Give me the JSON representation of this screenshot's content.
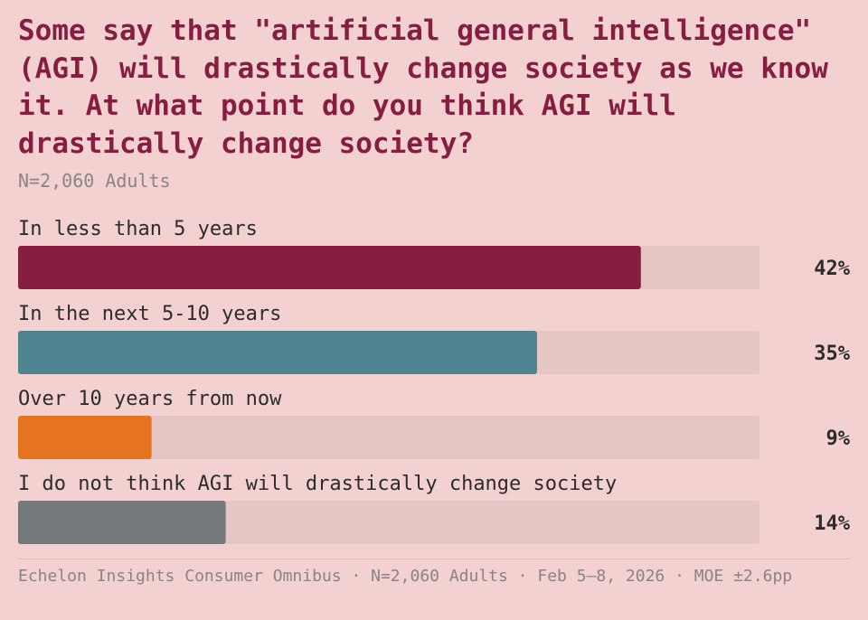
{
  "header": {
    "title": "Some say that \"artificial general intelligence\" (AGI) will drastically change society as we know it. At what point do you think AGI will drastically change society?",
    "subtitle": "N=2,060 Adults"
  },
  "chart_data": {
    "type": "bar",
    "orientation": "horizontal",
    "categories": [
      "In less than 5 years",
      "In the next 5-10 years",
      "Over 10 years from now",
      "I do not think AGI will drastically change society"
    ],
    "values": [
      42,
      35,
      9,
      14
    ],
    "value_labels": [
      "42%",
      "35%",
      "9%",
      "14%"
    ],
    "colors": [
      "#861e42",
      "#4f8590",
      "#e57320",
      "#75787b"
    ],
    "track_color": "#e5c6c4",
    "xlim": [
      0,
      50
    ],
    "grid": false
  },
  "footer": {
    "text": "Echelon Insights Consumer Omnibus · N=2,060 Adults · Feb 5–8, 2026 · MOE ±2.6pp"
  }
}
